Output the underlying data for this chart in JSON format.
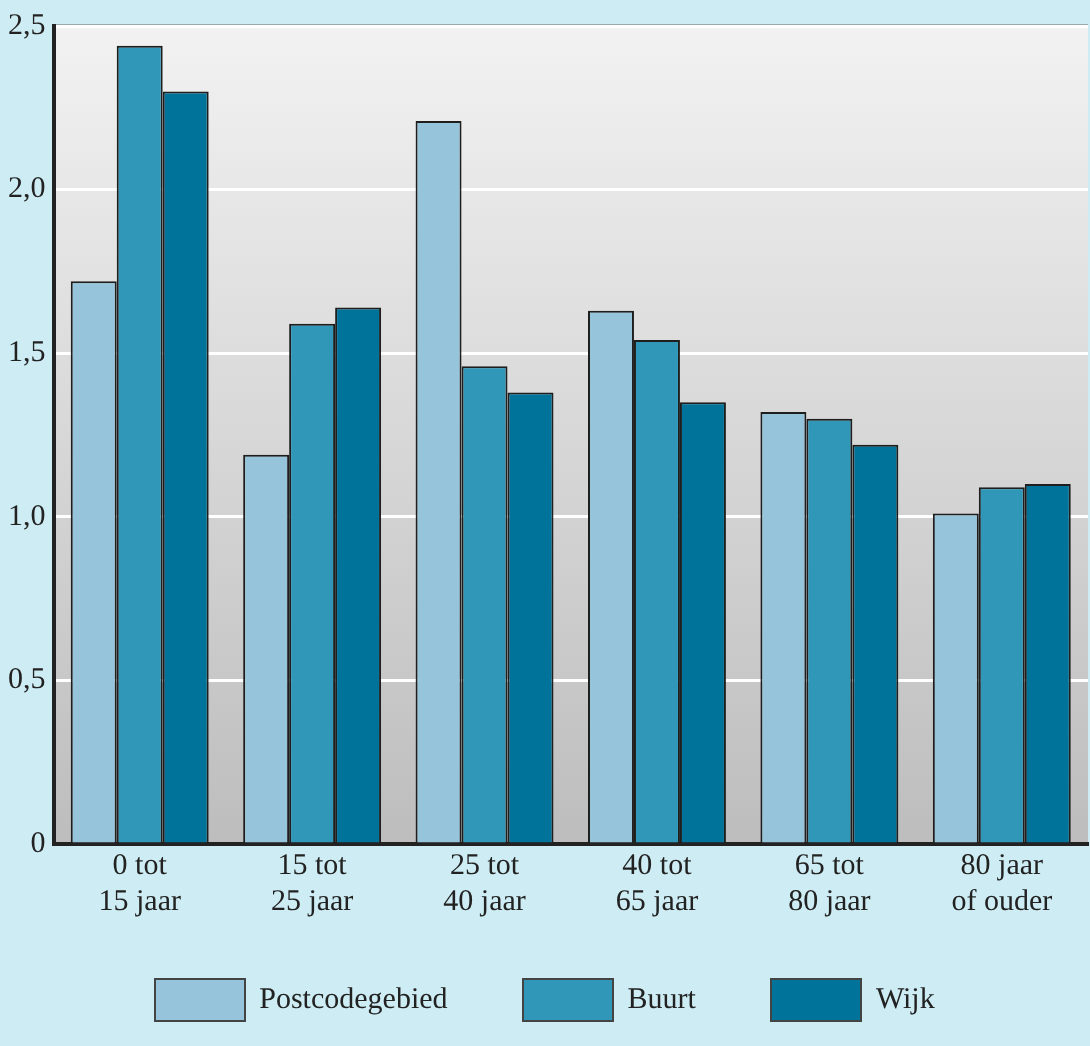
{
  "chart_data": {
    "type": "bar",
    "categories": [
      "0 tot 15 jaar",
      "15 tot 25 jaar",
      "25 tot 40 jaar",
      "40 tot 65 jaar",
      "65 tot 80 jaar",
      "80 jaar of ouder"
    ],
    "series": [
      {
        "name": "Postcodegebied",
        "color": "#96c4db",
        "values": [
          1.72,
          1.19,
          2.21,
          1.63,
          1.32,
          1.01
        ]
      },
      {
        "name": "Buurt",
        "color": "#3097b9",
        "values": [
          2.44,
          1.59,
          1.46,
          1.54,
          1.3,
          1.09
        ]
      },
      {
        "name": "Wijk",
        "color": "#00739a",
        "values": [
          2.3,
          1.64,
          1.38,
          1.35,
          1.22,
          1.1
        ]
      }
    ],
    "ylim": [
      0,
      2.5
    ],
    "yticks": [
      0,
      {
        "value": 0.5,
        "label": "0,5"
      },
      {
        "value": 1,
        "label": "1,0"
      },
      {
        "value": 1.5,
        "label": "1,5"
      },
      {
        "value": 2,
        "label": "2,0"
      },
      {
        "value": 2.5,
        "label": "2,5"
      }
    ],
    "grid": "y",
    "legend": "bottom"
  }
}
